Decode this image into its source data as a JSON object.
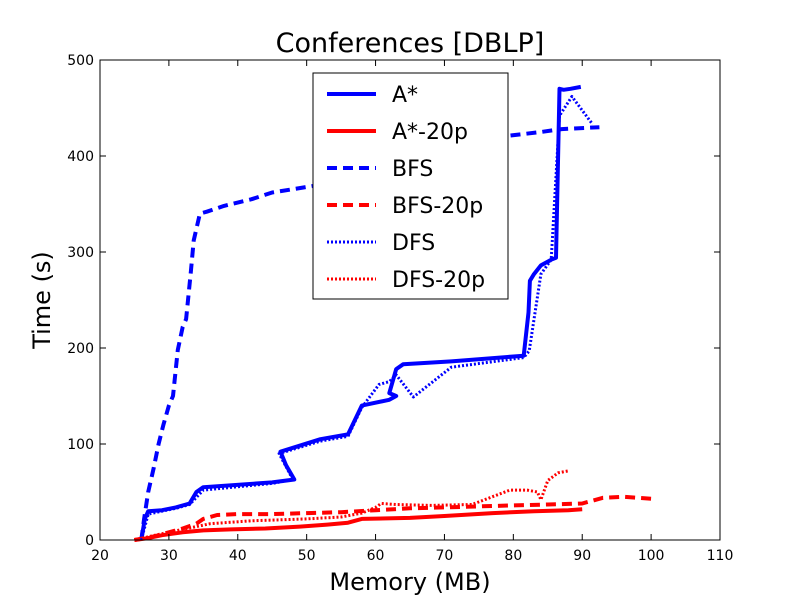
{
  "chart_data": {
    "type": "line",
    "title": "Conferences [DBLP]",
    "xlabel": "Memory (MB)",
    "ylabel": "Time (s)",
    "xlim": [
      20,
      110
    ],
    "ylim": [
      0,
      500
    ],
    "xticks": [
      20,
      30,
      40,
      50,
      60,
      70,
      80,
      90,
      100,
      110
    ],
    "yticks": [
      0,
      100,
      200,
      300,
      400,
      500
    ],
    "grid": false,
    "legend": "top-center",
    "series": [
      {
        "name": "A*",
        "color": "#0000ff",
        "style": "solid",
        "width": 4,
        "x": [
          26,
          26.5,
          27,
          29,
          31,
          33,
          34,
          35,
          45,
          48.2,
          47,
          46.2,
          52,
          56,
          58,
          62,
          63,
          62,
          63,
          64,
          71,
          81.5,
          82.2,
          82.4,
          83,
          84,
          85.5,
          86.2,
          86.7,
          87.3,
          88.3,
          89.8
        ],
        "y": [
          0,
          22,
          30,
          31,
          34,
          38,
          50,
          55,
          60,
          63,
          78,
          92,
          105,
          110,
          140,
          146,
          150,
          153,
          178,
          183,
          186,
          192,
          237,
          270,
          277,
          286,
          292,
          294,
          470,
          469,
          470,
          472
        ]
      },
      {
        "name": "A*-20p",
        "color": "#ff0000",
        "style": "solid",
        "width": 4,
        "x": [
          25,
          27,
          29,
          32,
          35,
          39,
          44,
          49,
          53,
          56,
          58,
          65,
          70,
          77,
          83,
          88,
          90
        ],
        "y": [
          0,
          2,
          5,
          8,
          10,
          11,
          12,
          14,
          16,
          18,
          22,
          23,
          25,
          28,
          30,
          31,
          32
        ]
      },
      {
        "name": "BFS",
        "color": "#0000ff",
        "style": "dashed",
        "width": 4,
        "x": [
          26,
          26.4,
          27,
          27.8,
          28.5,
          29.2,
          30,
          30.6,
          31.3,
          32,
          32.5,
          33.2,
          33.6,
          34.5,
          35.5,
          38,
          42,
          45,
          52,
          58,
          64,
          70,
          78,
          84,
          87,
          92.5
        ],
        "y": [
          0,
          22,
          50,
          75,
          100,
          120,
          140,
          150,
          198,
          222,
          230,
          280,
          312,
          340,
          342,
          348,
          355,
          362,
          370,
          380,
          400,
          418,
          420,
          425,
          428,
          430
        ]
      },
      {
        "name": "BFS-20p",
        "color": "#ff0000",
        "style": "dashed",
        "width": 4,
        "x": [
          25,
          28,
          30,
          32,
          34,
          35,
          37,
          40,
          45,
          50,
          55,
          60,
          65,
          70,
          75,
          80,
          85,
          90,
          93,
          96,
          100
        ],
        "y": [
          0,
          4,
          8,
          12,
          17,
          22,
          26,
          27,
          27,
          28,
          29,
          31,
          33,
          34,
          35,
          36,
          37,
          38,
          44,
          45,
          43
        ]
      },
      {
        "name": "DFS",
        "color": "#0000ff",
        "style": "dotted",
        "width": 3,
        "x": [
          26,
          27,
          29,
          31,
          33,
          35,
          45,
          48,
          46,
          52,
          56,
          58,
          60.5,
          62,
          63,
          65.5,
          71,
          81.5,
          82.3,
          84,
          85.5,
          86.7,
          88.5,
          91.5
        ],
        "y": [
          0,
          27,
          30,
          33,
          37,
          52,
          59,
          63,
          90,
          103,
          108,
          138,
          162,
          165,
          172,
          149,
          180,
          190,
          197,
          277,
          292,
          442,
          462,
          433
        ]
      },
      {
        "name": "DFS-20p",
        "color": "#ff0000",
        "style": "dotted",
        "width": 3,
        "x": [
          25,
          28,
          32,
          36,
          42,
          50,
          55,
          58,
          60,
          60.8,
          63,
          68,
          74,
          79.5,
          82,
          83.5,
          84,
          85,
          86.5,
          88
        ],
        "y": [
          0,
          5,
          11,
          17,
          20,
          22,
          24,
          28,
          34,
          38,
          37,
          36,
          37,
          52,
          52,
          50,
          42,
          62,
          70,
          72
        ]
      }
    ]
  }
}
